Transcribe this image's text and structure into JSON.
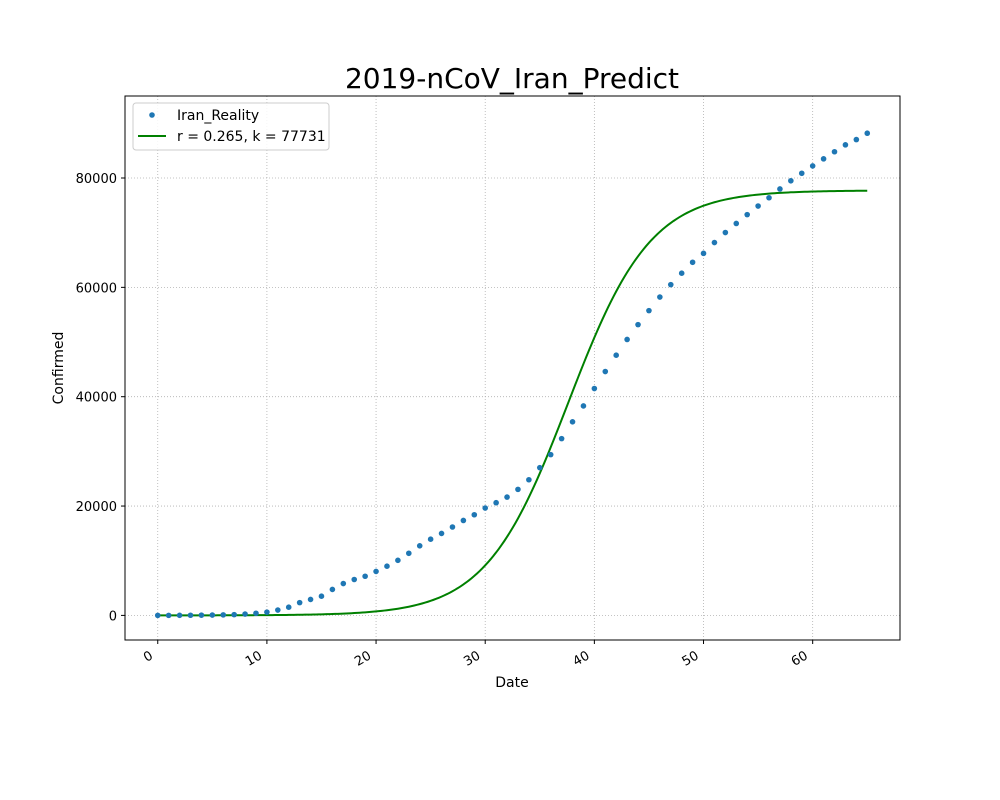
{
  "chart_data": {
    "type": "scatter",
    "title": "2019-nCoV_Iran_Predict",
    "xlabel": "Date",
    "ylabel": "Confirmed",
    "xlim": [
      -3,
      68
    ],
    "ylim": [
      -4500,
      95000
    ],
    "xticks": [
      0,
      10,
      20,
      30,
      40,
      50,
      60
    ],
    "yticks": [
      0,
      20000,
      40000,
      60000,
      80000
    ],
    "grid": true,
    "legend_position": "top-left",
    "series": [
      {
        "name": "Iran_Reality",
        "kind": "scatter",
        "color": "#1f77b4",
        "x": [
          0,
          1,
          2,
          3,
          4,
          5,
          6,
          7,
          8,
          9,
          10,
          11,
          12,
          13,
          14,
          15,
          16,
          17,
          18,
          19,
          20,
          21,
          22,
          23,
          24,
          25,
          26,
          27,
          28,
          29,
          30,
          31,
          32,
          33,
          34,
          35,
          36,
          37,
          38,
          39,
          40,
          41,
          42,
          43,
          44,
          45,
          46,
          47,
          48,
          49,
          50,
          51,
          52,
          53,
          54,
          55,
          56,
          57,
          58,
          59,
          60,
          61,
          62,
          63,
          64,
          65
        ],
        "y": [
          2,
          5,
          18,
          28,
          43,
          61,
          95,
          139,
          245,
          388,
          593,
          978,
          1501,
          2336,
          2922,
          3513,
          4747,
          5823,
          6566,
          7161,
          8042,
          9000,
          10075,
          11364,
          12729,
          13938,
          14991,
          16169,
          17361,
          18407,
          19644,
          20610,
          21638,
          23049,
          24811,
          27017,
          29406,
          32332,
          35408,
          38309,
          41495,
          44605,
          47593,
          50468,
          53183,
          55743,
          58226,
          60500,
          62589,
          64586,
          66220,
          68192,
          70029,
          71686,
          73303,
          74877,
          76389,
          77995,
          79494,
          80868,
          82211,
          83505,
          84802,
          86066,
          87026,
          88194
        ]
      },
      {
        "name": "r = 0.265, k = 77731",
        "kind": "line",
        "color": "#008000",
        "r": 0.265,
        "k": 77731,
        "x0": 37.6,
        "x_range": [
          0,
          65
        ]
      }
    ]
  }
}
